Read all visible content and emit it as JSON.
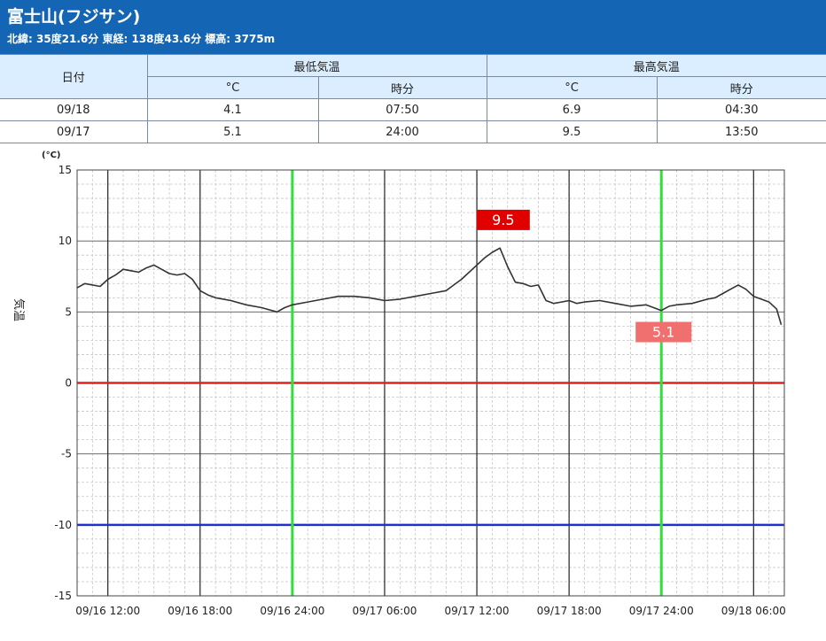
{
  "header": {
    "title": "富士山(フジサン)",
    "subtitle": "北緯: 35度21.6分 東経: 138度43.6分 標高: 3775m"
  },
  "table": {
    "date_header": "日付",
    "min_header": "最低気温",
    "max_header": "最高気温",
    "unit_c": "°C",
    "time_label": "時分",
    "rows": [
      {
        "date": "09/18",
        "min": "4.1",
        "min_time": "07:50",
        "max": "6.9",
        "max_time": "04:30"
      },
      {
        "date": "09/17",
        "min": "5.1",
        "min_time": "24:00",
        "max": "9.5",
        "max_time": "13:50"
      }
    ]
  },
  "chart_data": {
    "type": "line",
    "unit_label": "(°C)",
    "ylabel": "気温",
    "ylim": [
      -15,
      15
    ],
    "yticks": [
      15,
      10,
      5,
      0,
      -5,
      -10,
      -15
    ],
    "x_range_hours": [
      -2,
      44
    ],
    "xticks": [
      {
        "label": "09/16 12:00"
      },
      {
        "label": "09/16 18:00"
      },
      {
        "label": "09/16 24:00"
      },
      {
        "label": "09/17 06:00"
      },
      {
        "label": "09/17 12:00"
      },
      {
        "label": "09/17 18:00"
      },
      {
        "label": "09/17 24:00"
      },
      {
        "label": "09/18 06:00"
      }
    ],
    "grid": true,
    "reference_lines": [
      {
        "value": 0,
        "color": "#e02020"
      },
      {
        "value": -10,
        "color": "#2030d0"
      }
    ],
    "day_boundary_color": "#2ee03a",
    "annotations": [
      {
        "text": "9.5",
        "color": "#e00000"
      },
      {
        "text": "5.1",
        "color": "#f07070"
      }
    ],
    "series": [
      {
        "color": "#333333",
        "x": [
          -2,
          -1.5,
          -0.5,
          0,
          0.5,
          1,
          1.5,
          2,
          2.5,
          3,
          3.5,
          4,
          4.5,
          5,
          5.5,
          6,
          6.5,
          7,
          8,
          9,
          10,
          11,
          11.5,
          12,
          13,
          14,
          15,
          16,
          17,
          18,
          19,
          20,
          21,
          22,
          22.5,
          23,
          24,
          24.5,
          25,
          25.5,
          26,
          26.5,
          27,
          27.5,
          28,
          28.5,
          29,
          29.5,
          30,
          30.5,
          31,
          32,
          33,
          34,
          35,
          36,
          36.5,
          37,
          38,
          39,
          39.5,
          40,
          40.5,
          41,
          41.5,
          42,
          42.5,
          43,
          43.5,
          43.8
        ],
        "y": [
          6.7,
          7.0,
          6.8,
          7.3,
          7.6,
          8.0,
          7.9,
          7.8,
          8.1,
          8.3,
          8.0,
          7.7,
          7.6,
          7.7,
          7.3,
          6.5,
          6.2,
          6.0,
          5.8,
          5.5,
          5.3,
          5.0,
          5.3,
          5.5,
          5.7,
          5.9,
          6.1,
          6.1,
          6.0,
          5.8,
          5.9,
          6.1,
          6.3,
          6.5,
          6.9,
          7.3,
          8.3,
          8.8,
          9.2,
          9.5,
          8.2,
          7.1,
          7.0,
          6.8,
          6.9,
          5.8,
          5.6,
          5.7,
          5.8,
          5.6,
          5.7,
          5.8,
          5.6,
          5.4,
          5.5,
          5.1,
          5.4,
          5.5,
          5.6,
          5.9,
          6.0,
          6.3,
          6.6,
          6.9,
          6.6,
          6.1,
          5.9,
          5.7,
          5.2,
          4.1
        ]
      }
    ]
  }
}
